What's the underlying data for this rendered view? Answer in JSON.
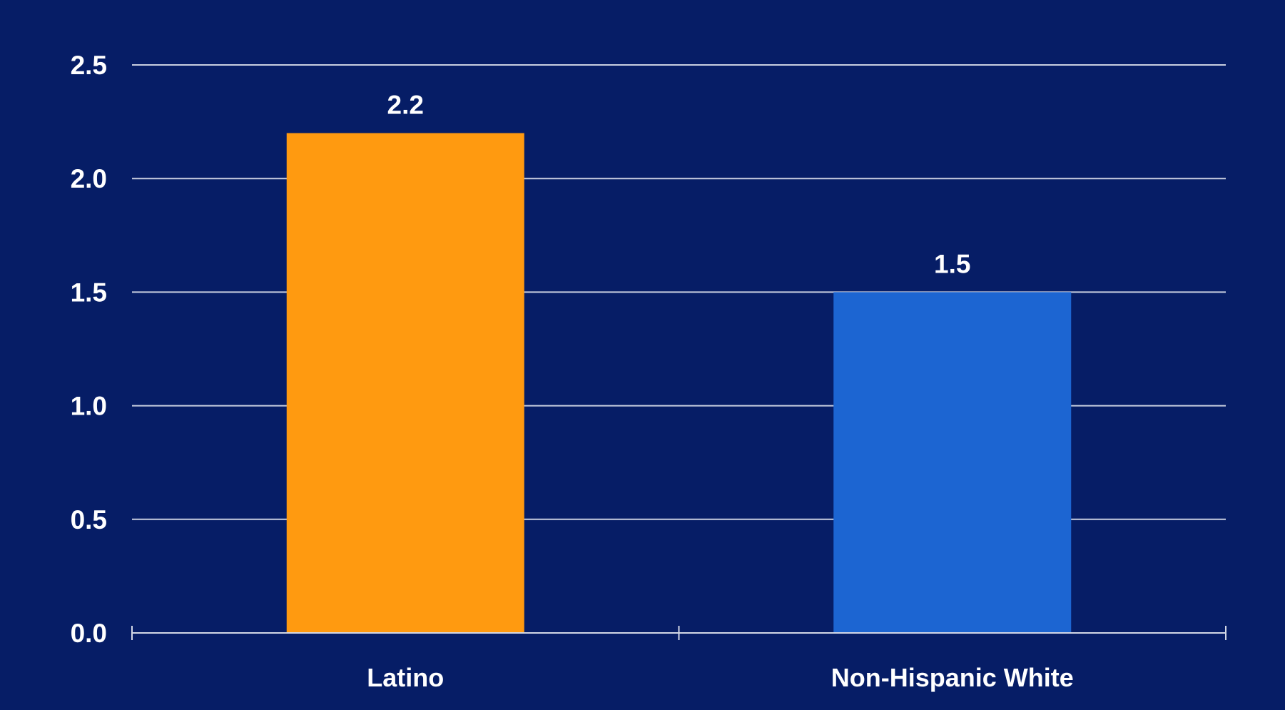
{
  "chart_data": {
    "type": "bar",
    "categories": [
      "Latino",
      "Non-Hispanic White"
    ],
    "values": [
      2.2,
      1.5
    ],
    "data_labels": [
      "2.2",
      "1.5"
    ],
    "bar_colors": [
      "#ff9a10",
      "#1c65d2"
    ],
    "background_color": "#061d66",
    "gridline_color": "#c9cfe0",
    "text_color": "#ffffff",
    "ylim": [
      0,
      2.5
    ],
    "yticks": [
      0,
      0.5,
      1.0,
      1.5,
      2.0,
      2.5
    ],
    "ytick_labels": [
      "0.0",
      "0.5",
      "1.0",
      "1.5",
      "2.0",
      "2.5"
    ],
    "grid": true,
    "legend": "none",
    "title": "",
    "xlabel": "",
    "ylabel": ""
  }
}
